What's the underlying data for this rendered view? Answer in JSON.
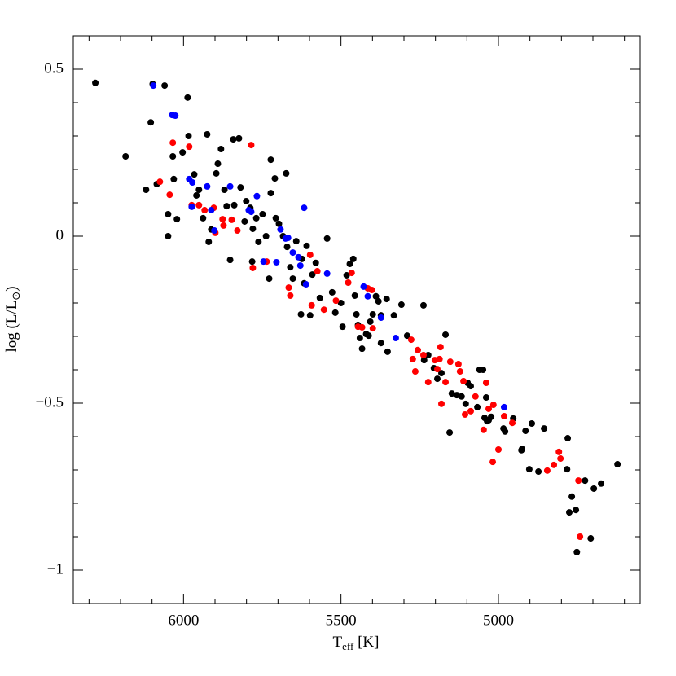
{
  "chart_data": {
    "type": "scatter",
    "xlabel": {
      "main": "T",
      "sub": "eff",
      "rest": " [K]"
    },
    "ylabel": {
      "main": "log (L/L",
      "sub": "⊙",
      "rest": ")"
    },
    "xlim": [
      6350,
      4550
    ],
    "ylim": [
      -1.1,
      0.6
    ],
    "xticks": [
      6000,
      5500,
      5000
    ],
    "yticks": [
      {
        "value": -1,
        "label": "−1"
      },
      {
        "value": -0.5,
        "label": "−0.5"
      },
      0,
      0.5
    ],
    "xminorticks": [
      6300,
      6200,
      6100,
      5900,
      5800,
      5700,
      5600,
      5400,
      5300,
      5200,
      5100,
      4900,
      4800,
      4700,
      4600
    ],
    "yminorticks": [
      -1.1,
      -0.9,
      -0.8,
      -0.7,
      -0.6,
      -0.4,
      -0.3,
      -0.2,
      -0.1,
      0.1,
      0.2,
      0.3,
      0.4,
      0.6
    ],
    "series": [
      {
        "color": "#000000",
        "x": [
          6280,
          6184,
          6104,
          6098,
          6060,
          5987,
          6119,
          6085,
          6049,
          6049,
          6034,
          6031,
          6021,
          6003,
          5984,
          5966,
          5959,
          5951,
          5938,
          5920,
          5912,
          5925,
          5896,
          5891,
          5881,
          5870,
          5863,
          5852,
          5839,
          5842,
          5824,
          5819,
          5806,
          5801,
          5788,
          5780,
          5782,
          5769,
          5762,
          5749,
          5738,
          5728,
          5723,
          5723,
          5710,
          5707,
          5697,
          5684,
          5674,
          5671,
          5661,
          5653,
          5642,
          5627,
          5624,
          5617,
          5609,
          5598,
          5591,
          5580,
          5567,
          5544,
          5528,
          5518,
          5500,
          5495,
          5482,
          5472,
          5461,
          5456,
          5451,
          5446,
          5440,
          5433,
          5420,
          5412,
          5407,
          5399,
          5389,
          5381,
          5373,
          5373,
          5355,
          5352,
          5332,
          5308,
          5290,
          5238,
          5236,
          5223,
          5205,
          5194,
          5181,
          5168,
          5155,
          5148,
          5132,
          5117,
          5104,
          5098,
          5088,
          5067,
          5060,
          5049,
          5044,
          5039,
          5036,
          5031,
          5023,
          4984,
          4979,
          4953,
          4927,
          4925,
          4914,
          4902,
          4894,
          4873,
          4855,
          4782,
          4780,
          4767,
          4775,
          4754,
          4751,
          4707,
          4725,
          4697,
          4674,
          4622
        ],
        "values": [
          0.459,
          0.239,
          0.341,
          0.456,
          0.451,
          0.415,
          0.139,
          0.156,
          0.066,
          0.0,
          0.239,
          0.171,
          0.051,
          0.251,
          0.3,
          0.185,
          0.122,
          0.139,
          0.054,
          -0.017,
          0.02,
          0.305,
          0.188,
          0.217,
          0.261,
          0.139,
          0.09,
          -0.071,
          0.093,
          0.29,
          0.293,
          0.146,
          0.044,
          0.105,
          0.085,
          0.022,
          -0.076,
          0.054,
          -0.017,
          0.066,
          0.0,
          -0.127,
          0.229,
          0.129,
          0.173,
          0.054,
          0.037,
          0.0,
          0.188,
          -0.032,
          -0.093,
          -0.127,
          -0.015,
          -0.234,
          -0.068,
          -0.141,
          -0.029,
          -0.237,
          -0.115,
          -0.08,
          -0.185,
          -0.007,
          -0.168,
          -0.229,
          -0.2,
          -0.271,
          -0.117,
          -0.083,
          -0.068,
          -0.178,
          -0.234,
          -0.266,
          -0.305,
          -0.337,
          -0.293,
          -0.298,
          -0.256,
          -0.234,
          -0.18,
          -0.195,
          -0.237,
          -0.32,
          -0.188,
          -0.346,
          -0.237,
          -0.205,
          -0.298,
          -0.207,
          -0.371,
          -0.356,
          -0.395,
          -0.427,
          -0.41,
          -0.295,
          -0.588,
          -0.471,
          -0.476,
          -0.48,
          -0.502,
          -0.439,
          -0.449,
          -0.512,
          -0.4,
          -0.4,
          -0.544,
          -0.483,
          -0.554,
          -0.551,
          -0.541,
          -0.576,
          -0.585,
          -0.546,
          -0.641,
          -0.637,
          -0.583,
          -0.698,
          -0.561,
          -0.705,
          -0.576,
          -0.698,
          -0.605,
          -0.78,
          -0.827,
          -0.82,
          -0.946,
          -0.905,
          -0.732,
          -0.756,
          -0.741,
          -0.683
        ]
      },
      {
        "color": "#ff0000",
        "x": [
          6034,
          5982,
          6075,
          6044,
          5974,
          5951,
          5933,
          5904,
          5899,
          5876,
          5873,
          5847,
          5829,
          5785,
          5780,
          5736,
          5666,
          5661,
          5598,
          5593,
          5575,
          5554,
          5516,
          5477,
          5466,
          5446,
          5433,
          5415,
          5402,
          5399,
          5277,
          5272,
          5264,
          5256,
          5238,
          5223,
          5202,
          5194,
          5187,
          5184,
          5181,
          5168,
          5153,
          5127,
          5122,
          5111,
          5106,
          5088,
          5073,
          5047,
          5039,
          5031,
          5016,
          5018,
          5000,
          4982,
          4956,
          4845,
          4824,
          4808,
          4803,
          4746,
          4741
        ],
        "values": [
          0.28,
          0.268,
          0.163,
          0.124,
          0.093,
          0.093,
          0.078,
          0.085,
          0.01,
          0.051,
          0.032,
          0.049,
          0.017,
          0.273,
          -0.095,
          -0.076,
          -0.154,
          -0.178,
          -0.056,
          -0.207,
          -0.105,
          -0.22,
          -0.193,
          -0.139,
          -0.11,
          -0.271,
          -0.273,
          -0.156,
          -0.161,
          -0.276,
          -0.31,
          -0.368,
          -0.405,
          -0.341,
          -0.356,
          -0.437,
          -0.371,
          -0.398,
          -0.368,
          -0.332,
          -0.502,
          -0.437,
          -0.376,
          -0.383,
          -0.405,
          -0.434,
          -0.534,
          -0.524,
          -0.48,
          -0.58,
          -0.439,
          -0.517,
          -0.505,
          -0.676,
          -0.639,
          -0.539,
          -0.559,
          -0.702,
          -0.685,
          -0.646,
          -0.666,
          -0.732,
          -0.9
        ]
      },
      {
        "color": "#0000ff",
        "x": [
          6096,
          6036,
          6026,
          5982,
          5972,
          5974,
          5912,
          5902,
          5925,
          5852,
          5793,
          5767,
          5785,
          5746,
          5705,
          5692,
          5676,
          5668,
          5653,
          5635,
          5629,
          5617,
          5611,
          5544,
          5428,
          5415,
          5373,
          5326,
          4982
        ],
        "values": [
          0.451,
          0.363,
          0.361,
          0.171,
          0.161,
          0.088,
          0.078,
          0.017,
          0.149,
          0.149,
          0.078,
          0.12,
          0.073,
          -0.076,
          -0.078,
          0.02,
          -0.007,
          -0.005,
          -0.049,
          -0.063,
          -0.088,
          0.085,
          -0.144,
          -0.112,
          -0.151,
          -0.18,
          -0.244,
          -0.305,
          -0.512
        ]
      }
    ]
  }
}
